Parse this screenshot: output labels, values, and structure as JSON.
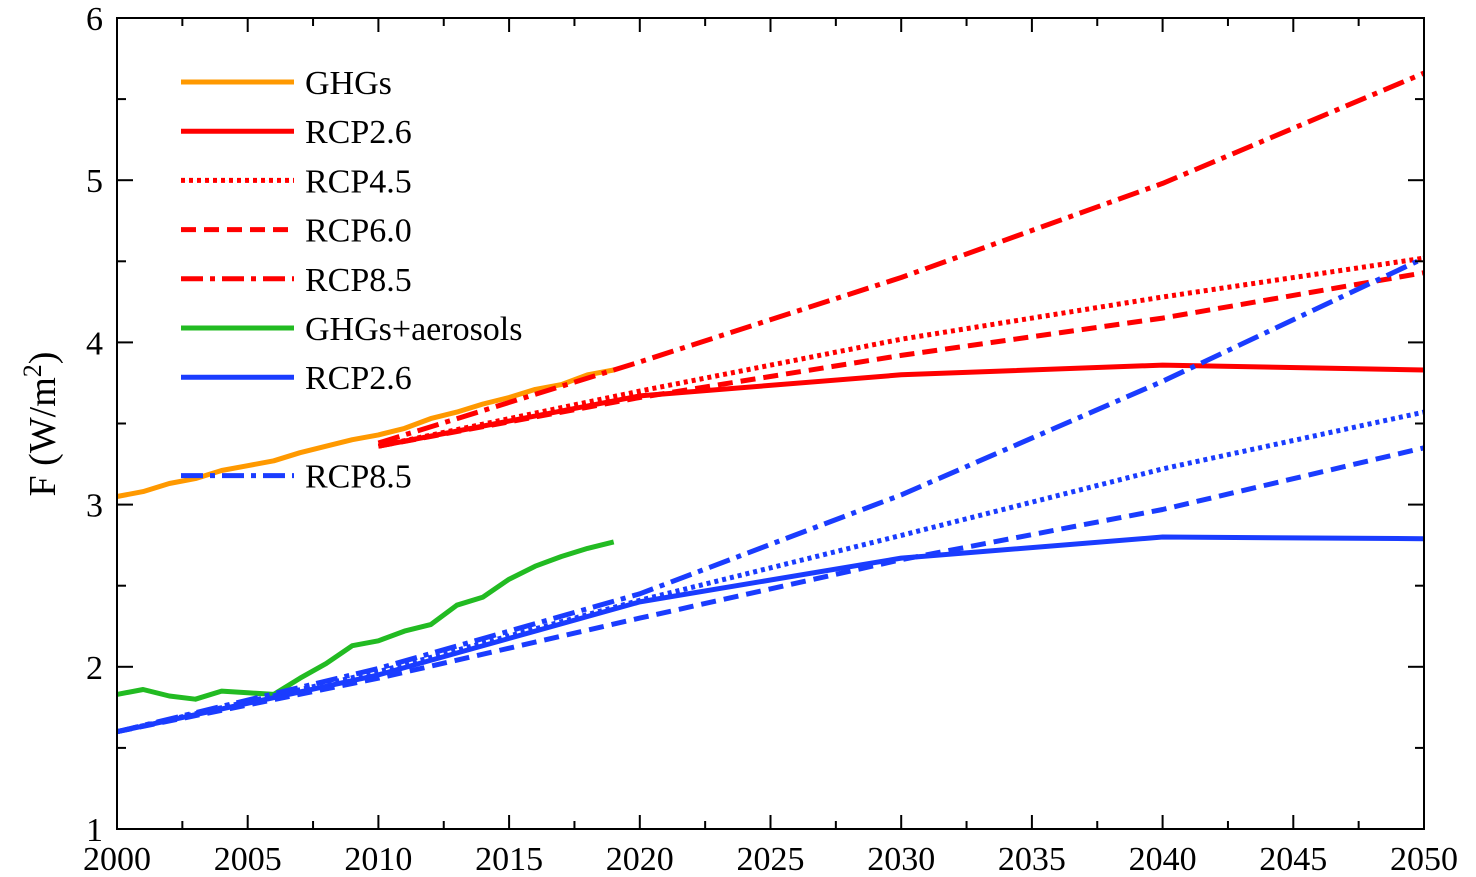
{
  "chart_data": {
    "type": "line",
    "title": "",
    "xlabel": "",
    "ylabel": {
      "main": "F (W/m",
      "sup": "2",
      "end": ")"
    },
    "xlim": [
      2000,
      2050
    ],
    "ylim": [
      1,
      6
    ],
    "x_ticks": [
      2000,
      2005,
      2010,
      2015,
      2020,
      2025,
      2030,
      2035,
      2040,
      2045,
      2050
    ],
    "y_ticks": [
      1,
      2,
      3,
      4,
      5,
      6
    ],
    "grid": false,
    "legend_position": "top-left",
    "series": [
      {
        "name": "GHGs",
        "color": "#ff9900",
        "dash": "solid",
        "x": [
          2000,
          2001,
          2002,
          2003,
          2004,
          2005,
          2006,
          2007,
          2008,
          2009,
          2010,
          2011,
          2012,
          2013,
          2014,
          2015,
          2016,
          2017,
          2018,
          2019
        ],
        "y": [
          3.05,
          3.08,
          3.13,
          3.16,
          3.21,
          3.24,
          3.27,
          3.32,
          3.36,
          3.4,
          3.43,
          3.47,
          3.53,
          3.57,
          3.62,
          3.66,
          3.71,
          3.74,
          3.8,
          3.83
        ]
      },
      {
        "name": "RCP2.6",
        "color": "#ff0000",
        "dash": "solid",
        "x": [
          2010,
          2020,
          2030,
          2040,
          2050
        ],
        "y": [
          3.36,
          3.67,
          3.8,
          3.86,
          3.83
        ]
      },
      {
        "name": "RCP4.5",
        "color": "#ff0000",
        "dash": "dotted",
        "x": [
          2010,
          2020,
          2030,
          2040,
          2050
        ],
        "y": [
          3.36,
          3.7,
          4.02,
          4.28,
          4.52
        ]
      },
      {
        "name": "RCP6.0",
        "color": "#ff0000",
        "dash": "dashed",
        "x": [
          2010,
          2020,
          2030,
          2040,
          2050
        ],
        "y": [
          3.36,
          3.66,
          3.92,
          4.15,
          4.43
        ]
      },
      {
        "name": "RCP8.5",
        "color": "#ff0000",
        "dash": "dashdot",
        "x": [
          2010,
          2020,
          2030,
          2040,
          2050
        ],
        "y": [
          3.38,
          3.88,
          4.4,
          4.98,
          5.66
        ]
      },
      {
        "name": "GHGs+aerosols",
        "color": "#22bb22",
        "dash": "solid",
        "x": [
          2000,
          2001,
          2002,
          2003,
          2004,
          2005,
          2006,
          2007,
          2008,
          2009,
          2010,
          2011,
          2012,
          2013,
          2014,
          2015,
          2016,
          2017,
          2018,
          2019
        ],
        "y": [
          1.83,
          1.86,
          1.82,
          1.8,
          1.85,
          1.84,
          1.83,
          1.93,
          2.02,
          2.13,
          2.16,
          2.22,
          2.26,
          2.38,
          2.43,
          2.54,
          2.62,
          2.68,
          2.73,
          2.77
        ]
      },
      {
        "name": "RCP2.6",
        "color": "#1a3cff",
        "dash": "solid",
        "x": [
          2000,
          2010,
          2020,
          2030,
          2040,
          2050
        ],
        "y": [
          1.6,
          1.95,
          2.4,
          2.67,
          2.8,
          2.79
        ]
      },
      {
        "name": "",
        "color": "#1a3cff",
        "dash": "dotted",
        "x": [
          2000,
          2010,
          2020,
          2030,
          2040,
          2050
        ],
        "y": [
          1.6,
          1.97,
          2.41,
          2.81,
          3.22,
          3.57
        ]
      },
      {
        "name": "",
        "color": "#1a3cff",
        "dash": "dashed",
        "x": [
          2000,
          2010,
          2020,
          2030,
          2040,
          2050
        ],
        "y": [
          1.6,
          1.93,
          2.3,
          2.66,
          2.97,
          3.35
        ]
      },
      {
        "name": "RCP8.5",
        "color": "#1a3cff",
        "dash": "dashdot",
        "x": [
          2000,
          2010,
          2020,
          2030,
          2040,
          2050
        ],
        "y": [
          1.6,
          1.99,
          2.45,
          3.06,
          3.76,
          4.52
        ]
      }
    ],
    "legend": [
      {
        "label": "GHGs",
        "series": 0
      },
      {
        "label": "RCP2.6",
        "series": 1
      },
      {
        "label": "RCP4.5",
        "series": 2
      },
      {
        "label": "RCP6.0",
        "series": 3
      },
      {
        "label": "RCP8.5",
        "series": 4
      },
      {
        "label": "GHGs+aerosols",
        "series": 5
      },
      {
        "label": "RCP2.6",
        "series": 6
      },
      {
        "label": "",
        "series": -1
      },
      {
        "label": "RCP8.5",
        "series": 9
      }
    ]
  }
}
